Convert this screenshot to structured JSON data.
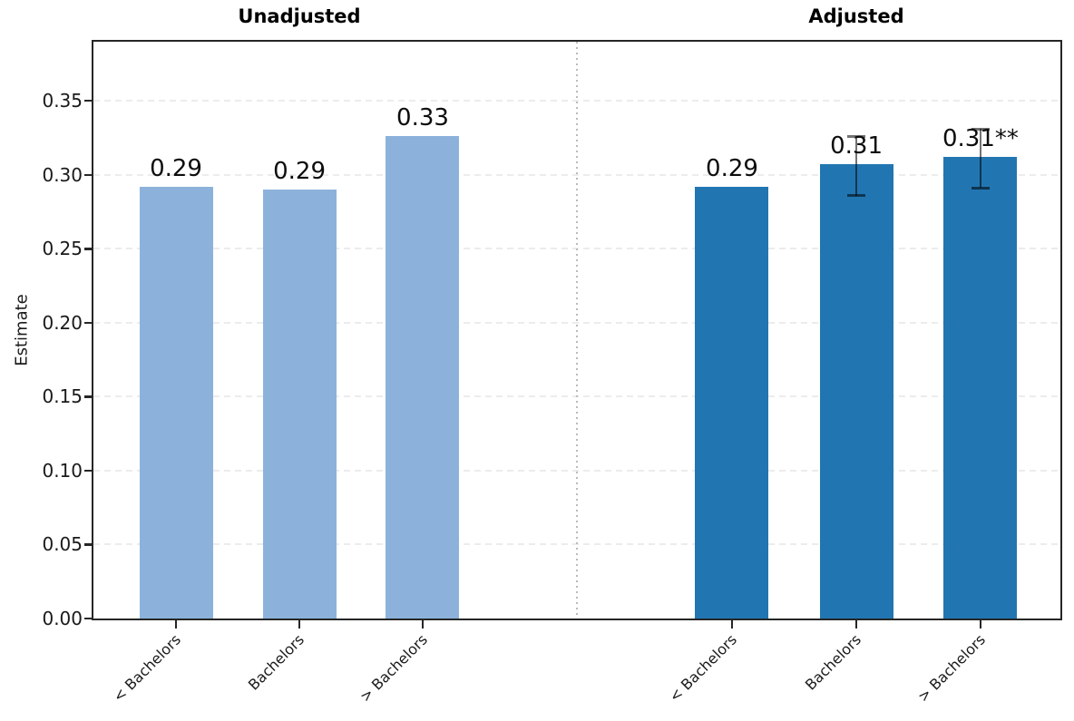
{
  "figure": {
    "background": "#ffffff"
  },
  "colors": {
    "unadjusted_bar": "#8cb2dc",
    "adjusted_bar": "#2176b2",
    "spine": "#262626",
    "gridline": "#ececec",
    "divider": "#bbbbbb",
    "text": "#000000"
  },
  "chart_data": {
    "type": "bar",
    "title": "",
    "xlabel": "",
    "ylabel": "Estimate",
    "ylim": [
      0,
      0.39
    ],
    "grid": "horizontal dashed lines at each y tick, drawn behind bars",
    "separator": "dotted vertical line between the two panels",
    "yticks": [
      {
        "value": 0.0,
        "label": "0.00"
      },
      {
        "value": 0.05,
        "label": "0.05"
      },
      {
        "value": 0.1,
        "label": "0.10"
      },
      {
        "value": 0.15,
        "label": "0.15"
      },
      {
        "value": 0.2,
        "label": "0.20"
      },
      {
        "value": 0.25,
        "label": "0.25"
      },
      {
        "value": 0.3,
        "label": "0.30"
      },
      {
        "value": 0.35,
        "label": "0.35"
      }
    ],
    "panels": [
      {
        "title": "Unadjusted",
        "color": "#8cb2dc",
        "categories": [
          "< Bachelors",
          "Bachelors",
          "> Bachelors"
        ],
        "bars": [
          {
            "category": "< Bachelors",
            "value": 0.292,
            "label": "0.29"
          },
          {
            "category": "Bachelors",
            "value": 0.29,
            "label": "0.29"
          },
          {
            "category": "> Bachelors",
            "value": 0.326,
            "label": "0.33"
          }
        ]
      },
      {
        "title": "Adjusted",
        "color": "#2176b2",
        "categories": [
          "< Bachelors",
          "Bachelors",
          "> Bachelors"
        ],
        "bars": [
          {
            "category": "< Bachelors",
            "value": 0.292,
            "label": "0.29"
          },
          {
            "category": "Bachelors",
            "value": 0.307,
            "label": "0.31",
            "ci_low": 0.286,
            "ci_high": 0.326
          },
          {
            "category": "> Bachelors",
            "value": 0.312,
            "label": "0.31**",
            "ci_low": 0.291,
            "ci_high": 0.331
          }
        ]
      }
    ]
  }
}
